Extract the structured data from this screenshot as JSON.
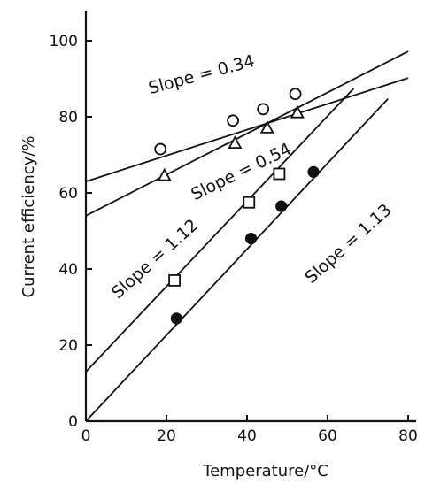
{
  "chart_data": {
    "type": "scatter",
    "xlabel": "Temperature/°C",
    "ylabel": "Current efficiency/%",
    "xlim": [
      0,
      80
    ],
    "ylim": [
      0,
      100
    ],
    "xticks": [
      0,
      20,
      40,
      60,
      80
    ],
    "yticks": [
      0,
      20,
      40,
      60,
      80,
      100
    ],
    "grid": false,
    "series": [
      {
        "marker": "circle-open",
        "points": [
          [
            18.5,
            71.5
          ],
          [
            36.5,
            79
          ],
          [
            44,
            82
          ],
          [
            52,
            86
          ]
        ],
        "fit": {
          "intercept": 63,
          "slope": 0.34,
          "x_end": 80
        },
        "annotation": "Slope = 0.34"
      },
      {
        "marker": "triangle-open",
        "points": [
          [
            19.5,
            64.5
          ],
          [
            37,
            73
          ],
          [
            45,
            77
          ],
          [
            52.5,
            81
          ]
        ],
        "fit": {
          "intercept": 54,
          "slope": 0.54,
          "x_end": 80
        },
        "annotation": "Slope = 0.54"
      },
      {
        "marker": "square-open",
        "points": [
          [
            22,
            37
          ],
          [
            40.5,
            57.5
          ],
          [
            48,
            65
          ]
        ],
        "fit": {
          "intercept": 13,
          "slope": 1.12,
          "x_end": 66.5
        },
        "annotation": "Slope = 1.12"
      },
      {
        "marker": "circle-filled",
        "points": [
          [
            22.5,
            27
          ],
          [
            41,
            48
          ],
          [
            48.5,
            56.5
          ],
          [
            56.5,
            65.5
          ]
        ],
        "fit": {
          "intercept": 0,
          "slope": 1.13,
          "x_end": 75
        },
        "annotation": "Slope = 1.13"
      }
    ]
  }
}
